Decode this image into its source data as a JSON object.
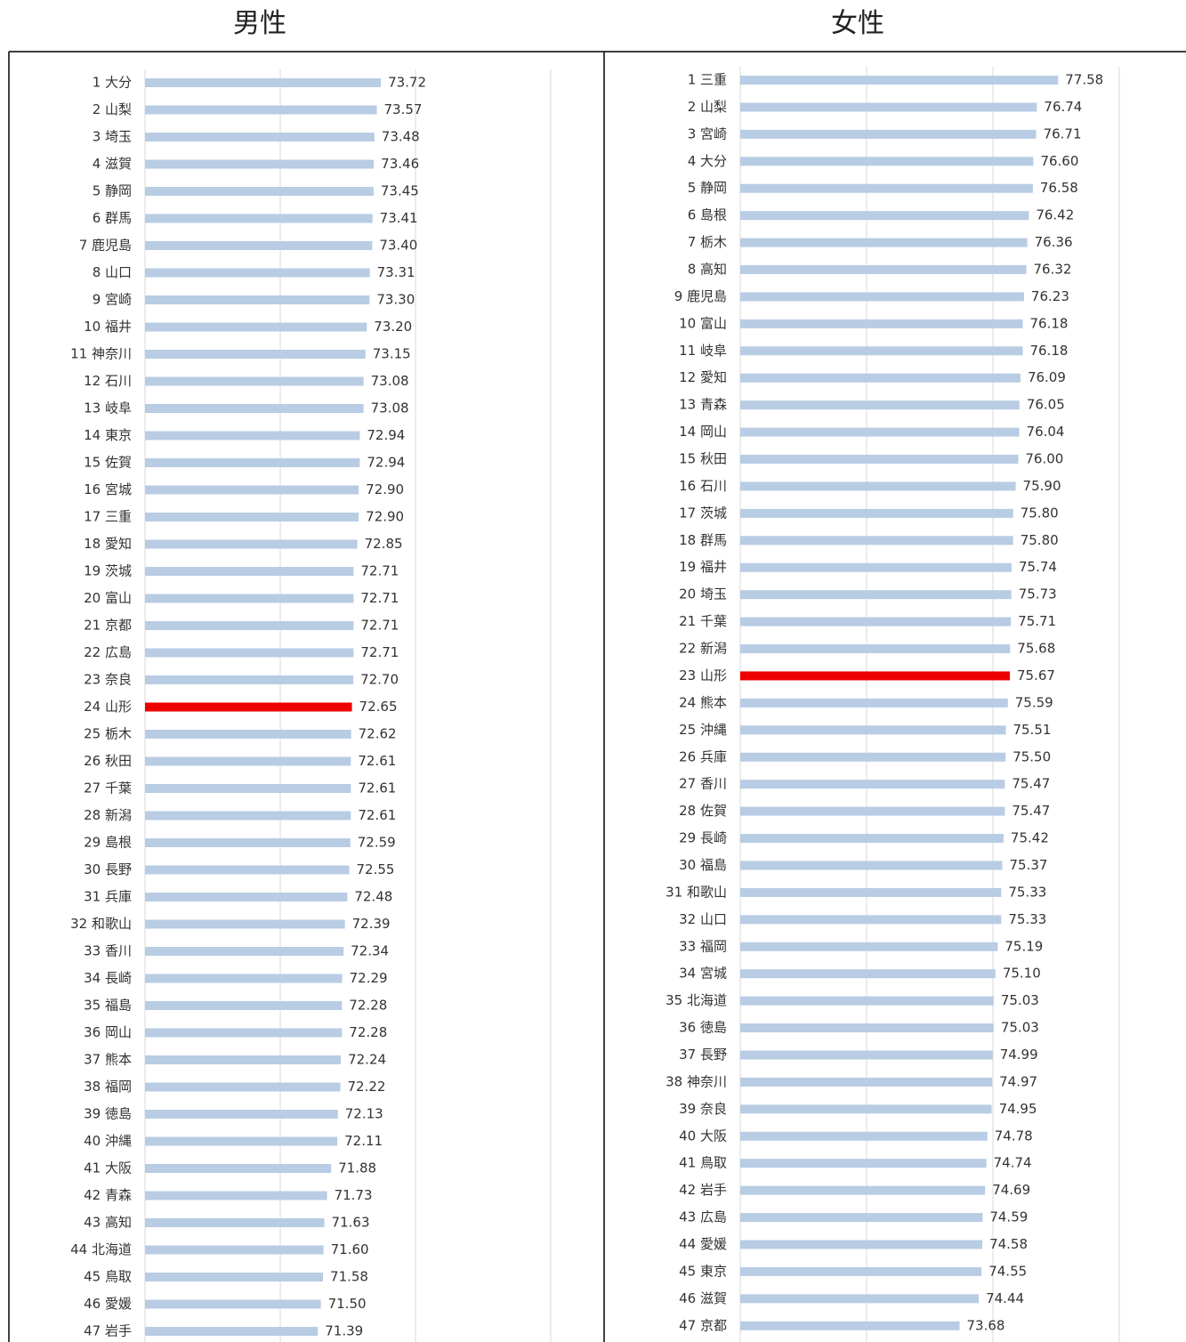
{
  "chart_data": [
    {
      "type": "bar",
      "orientation": "horizontal",
      "title": "男性",
      "categories": [
        "1 大分",
        "2 山梨",
        "3 埼玉",
        "4 滋賀",
        "5 静岡",
        "6 群馬",
        "7 鹿児島",
        "8 山口",
        "9 宮崎",
        "10 福井",
        "11 神奈川",
        "12 石川",
        "13 岐阜",
        "14 東京",
        "15 佐賀",
        "16 宮城",
        "17 三重",
        "18 愛知",
        "19 茨城",
        "20 富山",
        "21 京都",
        "22 広島",
        "23 奈良",
        "24 山形",
        "25 栃木",
        "26 秋田",
        "27 千葉",
        "28 新潟",
        "29 島根",
        "30 長野",
        "31 兵庫",
        "32 和歌山",
        "33 香川",
        "34 長崎",
        "35 福島",
        "36 岡山",
        "37 熊本",
        "38 福岡",
        "39 徳島",
        "40 沖縄",
        "41 大阪",
        "42 青森",
        "43 高知",
        "44 北海道",
        "45 鳥取",
        "46 愛媛",
        "47 岩手"
      ],
      "values": [
        73.72,
        73.57,
        73.48,
        73.46,
        73.45,
        73.41,
        73.4,
        73.31,
        73.3,
        73.2,
        73.15,
        73.08,
        73.08,
        72.94,
        72.94,
        72.9,
        72.9,
        72.85,
        72.71,
        72.71,
        72.71,
        72.71,
        72.7,
        72.65,
        72.62,
        72.61,
        72.61,
        72.61,
        72.59,
        72.55,
        72.48,
        72.39,
        72.34,
        72.29,
        72.28,
        72.28,
        72.24,
        72.22,
        72.13,
        72.11,
        71.88,
        71.73,
        71.63,
        71.6,
        71.58,
        71.5,
        71.39
      ],
      "value_labels": [
        "73.72",
        "73.57",
        "73.48",
        "73.46",
        "73.45",
        "73.41",
        "73.40",
        "73.31",
        "73.30",
        "73.20",
        "73.15",
        "73.08",
        "73.08",
        "72.94",
        "72.94",
        "72.90",
        "72.90",
        "72.85",
        "72.71",
        "72.71",
        "72.71",
        "72.71",
        "72.70",
        "72.65",
        "72.62",
        "72.61",
        "72.61",
        "72.61",
        "72.59",
        "72.55",
        "72.48",
        "72.39",
        "72.34",
        "72.29",
        "72.28",
        "72.28",
        "72.24",
        "72.22",
        "72.13",
        "72.11",
        "71.88",
        "71.73",
        "71.63",
        "71.60",
        "71.58",
        "71.50",
        "71.39"
      ],
      "colors": [
        "#b8cce4",
        "#b8cce4",
        "#b8cce4",
        "#b8cce4",
        "#b8cce4",
        "#b8cce4",
        "#b8cce4",
        "#b8cce4",
        "#b8cce4",
        "#b8cce4",
        "#b8cce4",
        "#b8cce4",
        "#b8cce4",
        "#b8cce4",
        "#b8cce4",
        "#b8cce4",
        "#b8cce4",
        "#b8cce4",
        "#b8cce4",
        "#b8cce4",
        "#b8cce4",
        "#b8cce4",
        "#b8cce4",
        "#ee0000",
        "#b8cce4",
        "#b8cce4",
        "#b8cce4",
        "#b8cce4",
        "#b8cce4",
        "#b8cce4",
        "#b8cce4",
        "#b8cce4",
        "#b8cce4",
        "#b8cce4",
        "#b8cce4",
        "#b8cce4",
        "#b8cce4",
        "#b8cce4",
        "#b8cce4",
        "#b8cce4",
        "#b8cce4",
        "#b8cce4",
        "#b8cce4",
        "#b8cce4",
        "#b8cce4",
        "#b8cce4",
        "#b8cce4"
      ],
      "xlim": [
        65,
        80
      ],
      "xticks": [
        65,
        70,
        75,
        80
      ],
      "grid": true
    },
    {
      "type": "bar",
      "orientation": "horizontal",
      "title": "女性",
      "categories": [
        "1 三重",
        "2 山梨",
        "3 宮崎",
        "4 大分",
        "5 静岡",
        "6 島根",
        "7 栃木",
        "8 高知",
        "9 鹿児島",
        "10 富山",
        "11 岐阜",
        "12 愛知",
        "13 青森",
        "14 岡山",
        "15 秋田",
        "16 石川",
        "17 茨城",
        "18 群馬",
        "19 福井",
        "20 埼玉",
        "21 千葉",
        "22 新潟",
        "23 山形",
        "24 熊本",
        "25 沖縄",
        "26 兵庫",
        "27 香川",
        "28 佐賀",
        "29 長崎",
        "30 福島",
        "31 和歌山",
        "32 山口",
        "33 福岡",
        "34 宮城",
        "35 北海道",
        "36 徳島",
        "37 長野",
        "38 神奈川",
        "39 奈良",
        "40 大阪",
        "41 鳥取",
        "42 岩手",
        "43 広島",
        "44 愛媛",
        "45 東京",
        "46 滋賀",
        "47 京都"
      ],
      "values": [
        77.58,
        76.74,
        76.71,
        76.6,
        76.58,
        76.42,
        76.36,
        76.32,
        76.23,
        76.18,
        76.18,
        76.09,
        76.05,
        76.04,
        76.0,
        75.9,
        75.8,
        75.8,
        75.74,
        75.73,
        75.71,
        75.68,
        75.67,
        75.59,
        75.51,
        75.5,
        75.47,
        75.47,
        75.42,
        75.37,
        75.33,
        75.33,
        75.19,
        75.1,
        75.03,
        75.03,
        74.99,
        74.97,
        74.95,
        74.78,
        74.74,
        74.69,
        74.59,
        74.58,
        74.55,
        74.44,
        73.68
      ],
      "value_labels": [
        "77.58",
        "76.74",
        "76.71",
        "76.60",
        "76.58",
        "76.42",
        "76.36",
        "76.32",
        "76.23",
        "76.18",
        "76.18",
        "76.09",
        "76.05",
        "76.04",
        "76.00",
        "75.90",
        "75.80",
        "75.80",
        "75.74",
        "75.73",
        "75.71",
        "75.68",
        "75.67",
        "75.59",
        "75.51",
        "75.50",
        "75.47",
        "75.47",
        "75.42",
        "75.37",
        "75.33",
        "75.33",
        "75.19",
        "75.10",
        "75.03",
        "75.03",
        "74.99",
        "74.97",
        "74.95",
        "74.78",
        "74.74",
        "74.69",
        "74.59",
        "74.58",
        "74.55",
        "74.44",
        "73.68"
      ],
      "colors": [
        "#b8cce4",
        "#b8cce4",
        "#b8cce4",
        "#b8cce4",
        "#b8cce4",
        "#b8cce4",
        "#b8cce4",
        "#b8cce4",
        "#b8cce4",
        "#b8cce4",
        "#b8cce4",
        "#b8cce4",
        "#b8cce4",
        "#b8cce4",
        "#b8cce4",
        "#b8cce4",
        "#b8cce4",
        "#b8cce4",
        "#b8cce4",
        "#b8cce4",
        "#b8cce4",
        "#b8cce4",
        "#ee0000",
        "#b8cce4",
        "#b8cce4",
        "#b8cce4",
        "#b8cce4",
        "#b8cce4",
        "#b8cce4",
        "#b8cce4",
        "#b8cce4",
        "#b8cce4",
        "#b8cce4",
        "#b8cce4",
        "#b8cce4",
        "#b8cce4",
        "#b8cce4",
        "#b8cce4",
        "#b8cce4",
        "#b8cce4",
        "#b8cce4",
        "#b8cce4",
        "#b8cce4",
        "#b8cce4",
        "#b8cce4",
        "#b8cce4",
        "#b8cce4"
      ],
      "xlim": [
        65,
        80
      ],
      "xticks": [
        65,
        70,
        75,
        80
      ],
      "grid": true
    }
  ]
}
